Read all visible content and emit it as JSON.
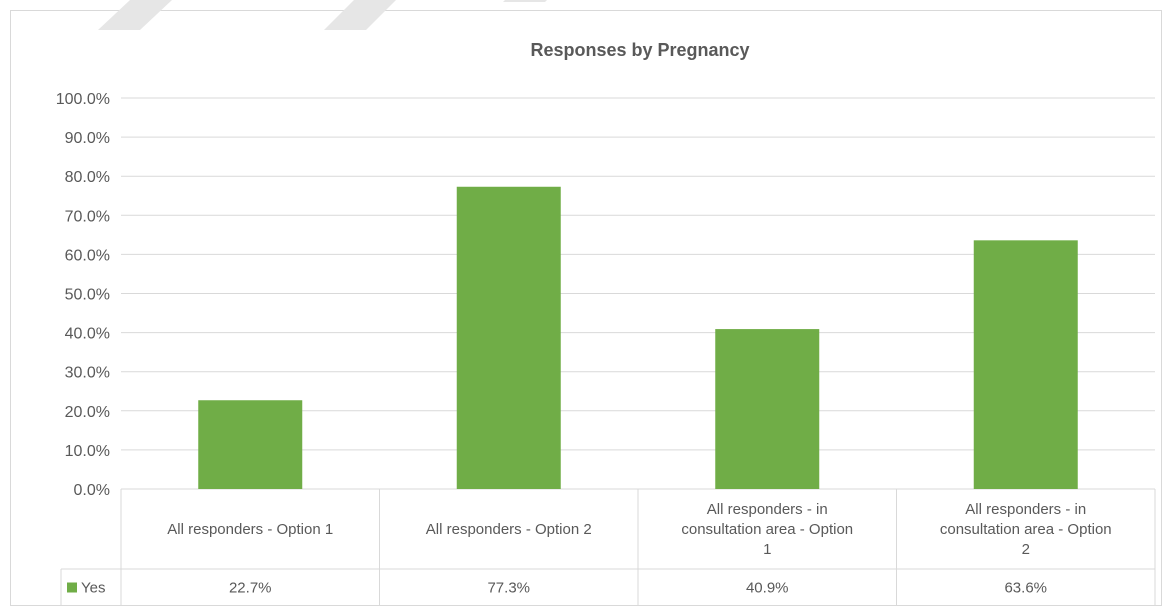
{
  "chart_data": {
    "type": "bar",
    "title": "Responses by Pregnancy",
    "categories": [
      [
        "All responders - Option 1"
      ],
      [
        "All responders - Option 2"
      ],
      [
        "All responders - in",
        "consultation area - Option",
        "1"
      ],
      [
        "All responders - in",
        "consultation area - Option",
        "2"
      ]
    ],
    "series": [
      {
        "name": "Yes",
        "values": [
          22.7,
          77.3,
          40.9,
          63.6
        ],
        "labels": [
          "22.7%",
          "77.3%",
          "40.9%",
          "63.6%"
        ],
        "color": "#70ad47"
      }
    ],
    "y_ticks": [
      "0.0%",
      "10.0%",
      "20.0%",
      "30.0%",
      "40.0%",
      "50.0%",
      "60.0%",
      "70.0%",
      "80.0%",
      "90.0%",
      "100.0%"
    ],
    "ylim": [
      0,
      100
    ],
    "grid": true,
    "legend": "data-table",
    "colors": {
      "gridline": "#d9d9d9",
      "text": "#595959",
      "watermark": "#e8e8e8"
    }
  }
}
